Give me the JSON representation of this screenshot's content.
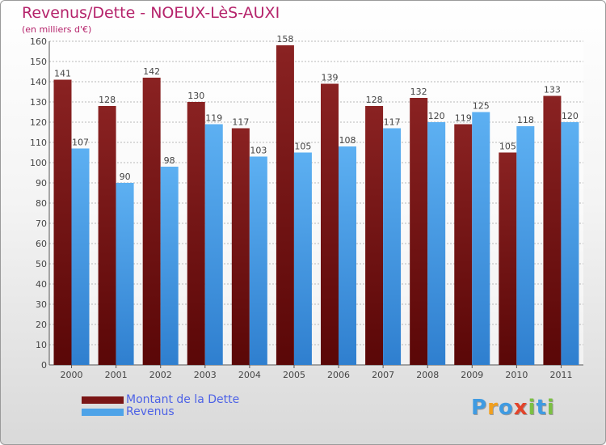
{
  "title": "Revenus/Dette - NOEUX-LèS-AUXI",
  "subtitle": "(en milliers d'€)",
  "legend": [
    {
      "label": "Montant de la Dette",
      "color": "#7a1515"
    },
    {
      "label": "Revenus",
      "color": "#4ea3e8"
    }
  ],
  "logo": {
    "letters": [
      {
        "char": "P",
        "color": "#3f9be2"
      },
      {
        "char": "r",
        "color": "#f2a01e"
      },
      {
        "char": "o",
        "color": "#3f9be2"
      },
      {
        "char": "x",
        "color": "#e2442b"
      },
      {
        "char": "i",
        "color": "#7bc043"
      },
      {
        "char": "t",
        "color": "#3f9be2"
      },
      {
        "char": "i",
        "color": "#7bc043"
      }
    ]
  },
  "chart_data": {
    "type": "bar",
    "title": "Revenus/Dette - NOEUX-LèS-AUXI",
    "subtitle": "(en milliers d'€)",
    "categories": [
      "2000",
      "2001",
      "2002",
      "2003",
      "2004",
      "2005",
      "2006",
      "2007",
      "2008",
      "2009",
      "2010",
      "2011"
    ],
    "series": [
      {
        "name": "Montant de la Dette",
        "color": "#7a1515",
        "values": [
          141,
          128,
          142,
          130,
          117,
          158,
          139,
          128,
          132,
          119,
          105,
          133
        ]
      },
      {
        "name": "Revenus",
        "color": "#4ea3e8",
        "values": [
          107,
          90,
          98,
          119,
          103,
          105,
          108,
          117,
          120,
          125,
          118,
          120
        ]
      }
    ],
    "ylim": [
      0,
      160
    ],
    "ytick_step": 10,
    "grid": true,
    "legend_position": "bottom-left",
    "data_labels": true
  }
}
